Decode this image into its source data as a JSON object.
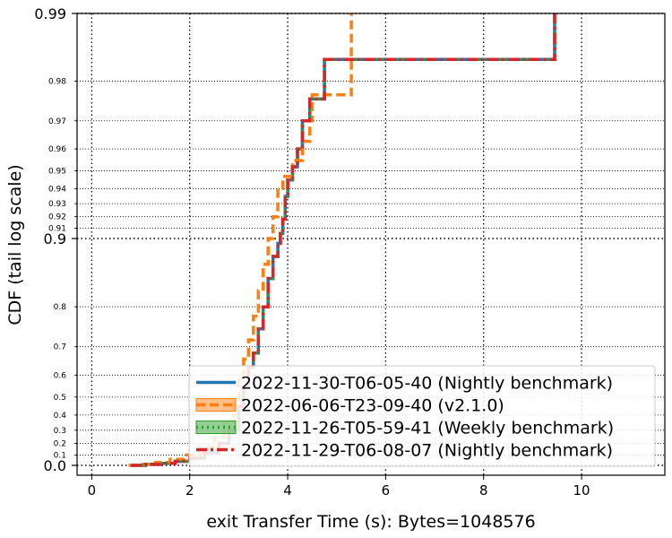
{
  "chart_data": {
    "type": "line",
    "subtype": "step-cdf",
    "xlabel": "exit Transfer Time (s): Bytes=1048576",
    "ylabel": "CDF (tail log scale)",
    "xlim": [
      -0.3,
      11.7
    ],
    "x_ticks": [
      0,
      2,
      4,
      6,
      8,
      10
    ],
    "y_scale": "tail-log (-log10(1-p))",
    "y_major_ticks": [
      {
        "p": 0.0,
        "label": "0.0"
      },
      {
        "p": 0.9,
        "label": "0.9"
      },
      {
        "p": 0.99,
        "label": "0.99"
      }
    ],
    "y_minor_ticks": [
      {
        "p": 0.1,
        "label": "0.1"
      },
      {
        "p": 0.2,
        "label": "0.2"
      },
      {
        "p": 0.3,
        "label": "0.3"
      },
      {
        "p": 0.4,
        "label": "0.4"
      },
      {
        "p": 0.5,
        "label": "0.5"
      },
      {
        "p": 0.6,
        "label": "0.6"
      },
      {
        "p": 0.7,
        "label": "0.7"
      },
      {
        "p": 0.8,
        "label": "0.8"
      },
      {
        "p": 0.91,
        "label": "0.91"
      },
      {
        "p": 0.92,
        "label": "0.92"
      },
      {
        "p": 0.93,
        "label": "0.93"
      },
      {
        "p": 0.94,
        "label": "0.94"
      },
      {
        "p": 0.95,
        "label": "0.95"
      },
      {
        "p": 0.96,
        "label": "0.96"
      },
      {
        "p": 0.97,
        "label": "0.97"
      },
      {
        "p": 0.98,
        "label": "0.98"
      }
    ],
    "grid": true,
    "legend_position": "lower-right",
    "series": [
      {
        "name": "2022-11-30-T06-05-40 (Nightly benchmark)",
        "color": "#1f77b4",
        "dash": "solid",
        "points": [
          [
            0.8,
            0.0
          ],
          [
            1.1,
            0.01
          ],
          [
            1.4,
            0.02
          ],
          [
            1.7,
            0.04
          ],
          [
            2.0,
            0.07
          ],
          [
            2.3,
            0.12
          ],
          [
            2.6,
            0.2
          ],
          [
            2.8,
            0.3
          ],
          [
            3.0,
            0.45
          ],
          [
            3.1,
            0.55
          ],
          [
            3.2,
            0.63
          ],
          [
            3.3,
            0.68
          ],
          [
            3.4,
            0.75
          ],
          [
            3.5,
            0.8
          ],
          [
            3.6,
            0.85
          ],
          [
            3.7,
            0.88
          ],
          [
            3.8,
            0.895
          ],
          [
            3.85,
            0.905
          ],
          [
            3.9,
            0.918
          ],
          [
            3.95,
            0.935
          ],
          [
            4.0,
            0.945
          ],
          [
            4.1,
            0.952
          ],
          [
            4.2,
            0.96
          ],
          [
            4.3,
            0.97
          ],
          [
            4.45,
            0.976
          ],
          [
            4.75,
            0.984
          ],
          [
            5.3,
            0.984
          ],
          [
            9.45,
            0.984
          ],
          [
            9.45,
            0.99
          ]
        ]
      },
      {
        "name": "2022-06-06-T23-09-40 (v2.1.0)",
        "color": "#ff7f0e",
        "dash": "dashed",
        "points": [
          [
            0.75,
            0.0
          ],
          [
            1.0,
            0.01
          ],
          [
            1.3,
            0.03
          ],
          [
            1.6,
            0.06
          ],
          [
            1.9,
            0.1
          ],
          [
            2.2,
            0.16
          ],
          [
            2.5,
            0.25
          ],
          [
            2.7,
            0.35
          ],
          [
            2.9,
            0.48
          ],
          [
            3.0,
            0.58
          ],
          [
            3.1,
            0.66
          ],
          [
            3.2,
            0.72
          ],
          [
            3.3,
            0.78
          ],
          [
            3.4,
            0.83
          ],
          [
            3.5,
            0.87
          ],
          [
            3.6,
            0.9
          ],
          [
            3.7,
            0.92
          ],
          [
            3.8,
            0.94
          ],
          [
            3.9,
            0.947
          ],
          [
            4.1,
            0.955
          ],
          [
            4.3,
            0.963
          ],
          [
            4.45,
            0.97
          ],
          [
            4.5,
            0.977
          ],
          [
            5.2,
            0.977
          ],
          [
            5.3,
            0.99
          ]
        ]
      },
      {
        "name": "2022-11-26-T05-59-41 (Weekly benchmark)",
        "color": "#2ca02c",
        "dash": "dotted",
        "points": [
          [
            0.8,
            0.0
          ],
          [
            1.1,
            0.01
          ],
          [
            1.4,
            0.02
          ],
          [
            1.7,
            0.04
          ],
          [
            2.0,
            0.07
          ],
          [
            2.3,
            0.12
          ],
          [
            2.6,
            0.2
          ],
          [
            2.8,
            0.3
          ],
          [
            3.0,
            0.45
          ],
          [
            3.1,
            0.55
          ],
          [
            3.2,
            0.63
          ],
          [
            3.3,
            0.68
          ],
          [
            3.4,
            0.75
          ],
          [
            3.5,
            0.8
          ],
          [
            3.6,
            0.85
          ],
          [
            3.7,
            0.88
          ],
          [
            3.8,
            0.895
          ],
          [
            3.85,
            0.905
          ],
          [
            3.9,
            0.918
          ],
          [
            3.95,
            0.935
          ],
          [
            4.0,
            0.945
          ],
          [
            4.1,
            0.952
          ],
          [
            4.2,
            0.96
          ],
          [
            4.3,
            0.97
          ],
          [
            4.45,
            0.976
          ],
          [
            4.75,
            0.984
          ],
          [
            5.3,
            0.984
          ],
          [
            9.45,
            0.984
          ],
          [
            9.45,
            0.99
          ]
        ]
      },
      {
        "name": "2022-11-29-T06-08-07 (Nightly benchmark)",
        "color": "#d62728",
        "dash": "dashdot",
        "points": [
          [
            0.8,
            0.0
          ],
          [
            1.1,
            0.01
          ],
          [
            1.4,
            0.02
          ],
          [
            1.7,
            0.04
          ],
          [
            2.0,
            0.07
          ],
          [
            2.3,
            0.12
          ],
          [
            2.6,
            0.2
          ],
          [
            2.8,
            0.3
          ],
          [
            3.0,
            0.45
          ],
          [
            3.1,
            0.55
          ],
          [
            3.2,
            0.63
          ],
          [
            3.3,
            0.68
          ],
          [
            3.4,
            0.75
          ],
          [
            3.5,
            0.8
          ],
          [
            3.6,
            0.85
          ],
          [
            3.7,
            0.88
          ],
          [
            3.8,
            0.895
          ],
          [
            3.85,
            0.905
          ],
          [
            3.9,
            0.918
          ],
          [
            3.95,
            0.935
          ],
          [
            4.0,
            0.945
          ],
          [
            4.1,
            0.952
          ],
          [
            4.2,
            0.96
          ],
          [
            4.3,
            0.97
          ],
          [
            4.45,
            0.976
          ],
          [
            4.75,
            0.984
          ],
          [
            5.3,
            0.984
          ],
          [
            9.45,
            0.984
          ],
          [
            9.45,
            0.99
          ]
        ]
      }
    ]
  }
}
